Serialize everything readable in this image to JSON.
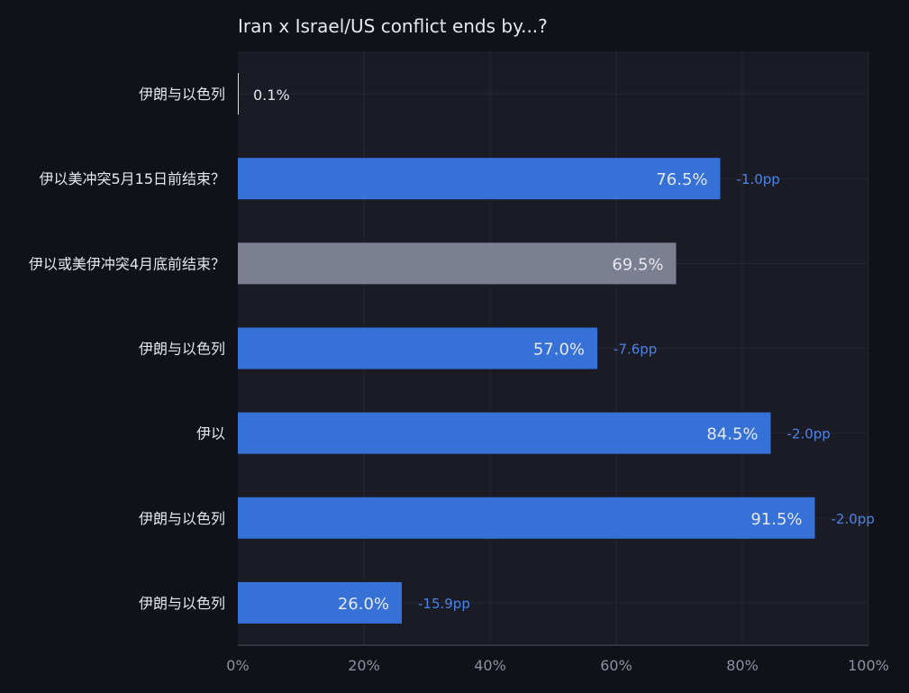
{
  "chart_data": {
    "type": "bar",
    "orientation": "horizontal",
    "title": "Iran x Israel/US conflict ends by...?",
    "xlabel": "",
    "ylabel": "",
    "xlim": [
      0,
      100
    ],
    "x_unit": "%",
    "x_ticks": [
      "0%",
      "20%",
      "40%",
      "60%",
      "80%",
      "100%"
    ],
    "grid": true,
    "categories": [
      "伊朗与以色列",
      "伊以美冲突5月15日前结束？",
      "伊以或美伊冲突4月底前结束？",
      "伊朗与以色列",
      "伊以",
      "伊朗与以色列",
      "伊朗与以色列"
    ],
    "values": [
      0.1,
      76.5,
      69.5,
      57.0,
      84.5,
      91.5,
      26.0
    ],
    "value_labels": [
      "0.1%",
      "76.5%",
      "69.5%",
      "57.0%",
      "84.5%",
      "91.5%",
      "26.0%"
    ],
    "changes": [
      "",
      "-1.0pp",
      "",
      "-7.6pp",
      "-2.0pp",
      "-2.0pp",
      "-15.9pp"
    ],
    "bar_colors": [
      "#d8d9e0",
      "#3571d6",
      "#7c7f91",
      "#3571d6",
      "#3571d6",
      "#3571d6",
      "#3571d6"
    ]
  },
  "colors": {
    "background": "#111218",
    "plot_background": "#1a1b25",
    "grid": "#252735",
    "axis": "#3a3c4c",
    "text": "#e6e7ec",
    "tick_text": "#8d90a0",
    "change_text": "#4a84e8"
  }
}
